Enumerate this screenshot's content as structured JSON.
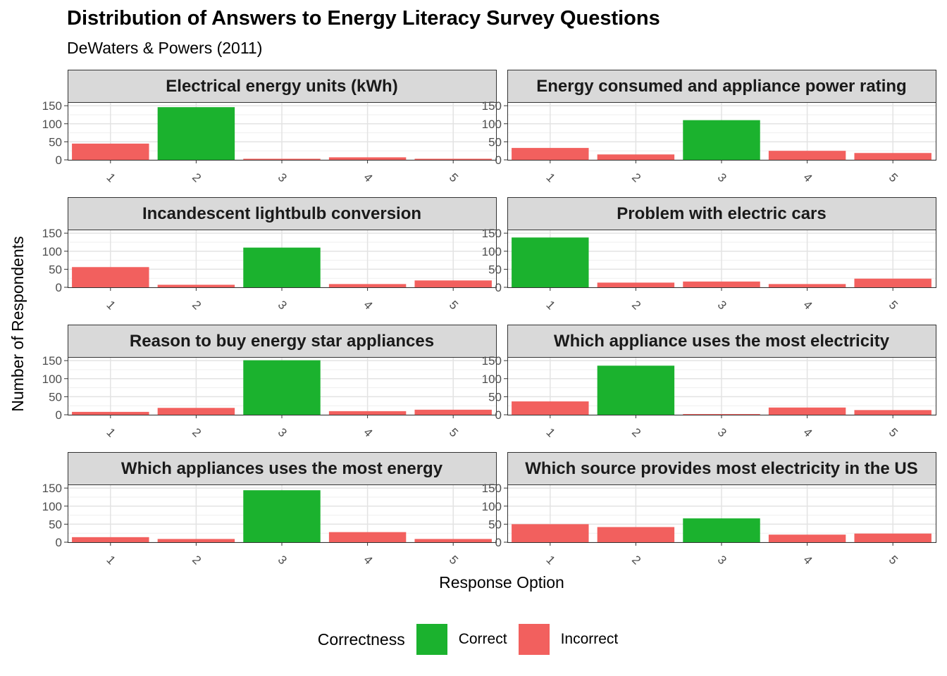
{
  "chart_data": {
    "type": "bar",
    "title": "Distribution of Answers to Energy Literacy Survey Questions",
    "subtitle": "DeWaters & Powers (2011)",
    "xlabel": "Response Option",
    "ylabel": "Number of Respondents",
    "categories": [
      "1",
      "2",
      "3",
      "4",
      "5"
    ],
    "ylim": [
      0,
      160
    ],
    "yticks": [
      0,
      50,
      100,
      150
    ],
    "grid": true,
    "legend": {
      "title": "Correctness",
      "position": "bottom",
      "items": [
        {
          "label": "Correct",
          "color": "#1BB22E"
        },
        {
          "label": "Incorrect",
          "color": "#F2605E"
        }
      ]
    },
    "colors": {
      "Correct": "#1BB22E",
      "Incorrect": "#F2605E"
    },
    "panels": [
      {
        "title": "Electrical energy units (kWh)",
        "values": [
          45,
          146,
          3,
          7,
          3
        ],
        "correct": "2"
      },
      {
        "title": "Energy consumed and appliance power rating",
        "values": [
          33,
          15,
          110,
          25,
          19
        ],
        "correct": "3"
      },
      {
        "title": "Incandescent lightbulb conversion",
        "values": [
          56,
          7,
          110,
          9,
          19
        ],
        "correct": "3"
      },
      {
        "title": "Problem with electric cars",
        "values": [
          138,
          13,
          16,
          9,
          24
        ],
        "correct": "1"
      },
      {
        "title": "Reason to buy energy star appliances",
        "values": [
          8,
          19,
          151,
          10,
          14
        ],
        "correct": "3"
      },
      {
        "title": "Which appliance uses the most electricity",
        "values": [
          37,
          136,
          2,
          20,
          13
        ],
        "correct": "2"
      },
      {
        "title": "Which appliances uses the most energy",
        "values": [
          14,
          9,
          144,
          28,
          9
        ],
        "correct": "3"
      },
      {
        "title": "Which source provides most electricity in the US",
        "values": [
          50,
          42,
          66,
          21,
          24
        ],
        "correct": "3"
      }
    ]
  }
}
